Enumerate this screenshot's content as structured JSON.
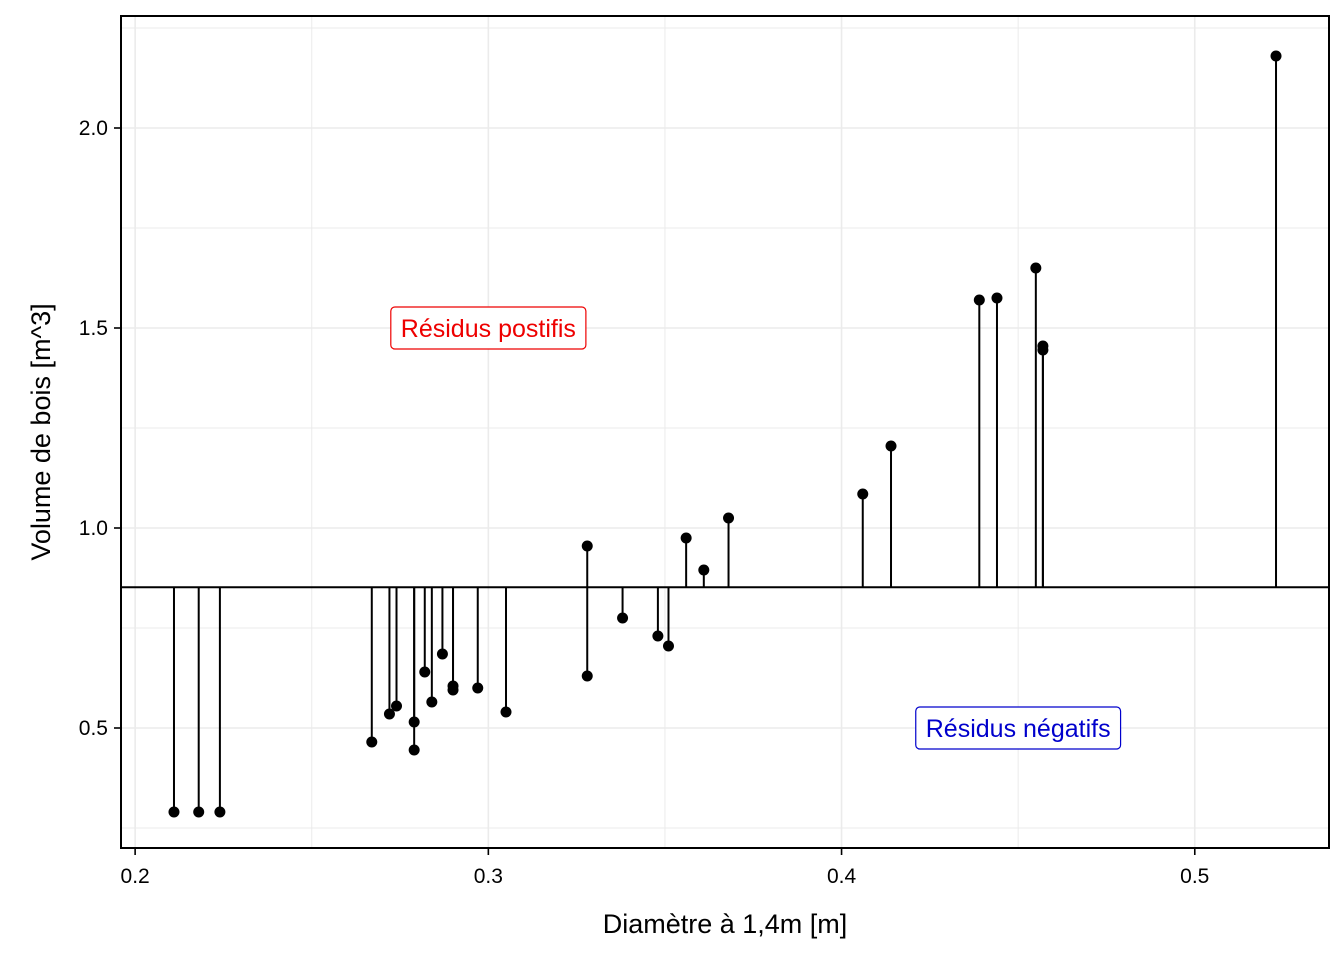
{
  "chart_data": {
    "type": "scatter",
    "xlabel": "Diamètre à 1,4m  [m]",
    "ylabel": "Volume de bois  [m^3]",
    "xlim": [
      0.196,
      0.538
    ],
    "ylim": [
      0.2,
      2.28
    ],
    "x_ticks": [
      0.2,
      0.3,
      0.4,
      0.5
    ],
    "x_tick_labels": [
      "0.2",
      "0.3",
      "0.4",
      "0.5"
    ],
    "y_ticks": [
      0.5,
      1.0,
      1.5,
      2.0
    ],
    "y_tick_labels": [
      "0.5",
      "1.0",
      "1.5",
      "2.0"
    ],
    "grid": true,
    "reference_line_y": 0.852,
    "annotations": [
      {
        "text": "Résidus postifis",
        "x": 0.3,
        "y": 1.5,
        "color": "#ee0000"
      },
      {
        "text": "Résidus négatifs",
        "x": 0.45,
        "y": 0.5,
        "color": "#0000cc"
      }
    ],
    "points": [
      {
        "x": 0.211,
        "y": 0.29
      },
      {
        "x": 0.218,
        "y": 0.29
      },
      {
        "x": 0.224,
        "y": 0.29
      },
      {
        "x": 0.267,
        "y": 0.465
      },
      {
        "x": 0.272,
        "y": 0.535
      },
      {
        "x": 0.274,
        "y": 0.555
      },
      {
        "x": 0.279,
        "y": 0.515
      },
      {
        "x": 0.279,
        "y": 0.445
      },
      {
        "x": 0.282,
        "y": 0.64
      },
      {
        "x": 0.284,
        "y": 0.565
      },
      {
        "x": 0.287,
        "y": 0.685
      },
      {
        "x": 0.29,
        "y": 0.595
      },
      {
        "x": 0.29,
        "y": 0.605
      },
      {
        "x": 0.297,
        "y": 0.6
      },
      {
        "x": 0.305,
        "y": 0.54
      },
      {
        "x": 0.328,
        "y": 0.63
      },
      {
        "x": 0.328,
        "y": 0.955
      },
      {
        "x": 0.338,
        "y": 0.775
      },
      {
        "x": 0.348,
        "y": 0.73
      },
      {
        "x": 0.351,
        "y": 0.705
      },
      {
        "x": 0.356,
        "y": 0.975
      },
      {
        "x": 0.361,
        "y": 0.895
      },
      {
        "x": 0.368,
        "y": 1.025
      },
      {
        "x": 0.406,
        "y": 1.085
      },
      {
        "x": 0.414,
        "y": 1.205
      },
      {
        "x": 0.439,
        "y": 1.57
      },
      {
        "x": 0.444,
        "y": 1.575
      },
      {
        "x": 0.455,
        "y": 1.65
      },
      {
        "x": 0.457,
        "y": 1.455
      },
      {
        "x": 0.457,
        "y": 1.445
      },
      {
        "x": 0.523,
        "y": 2.18
      }
    ],
    "colors": {
      "points": "#000000",
      "segments": "#000000",
      "grid": "#ebebeb",
      "positive_label": "#ee0000",
      "negative_label": "#0000cc"
    }
  }
}
